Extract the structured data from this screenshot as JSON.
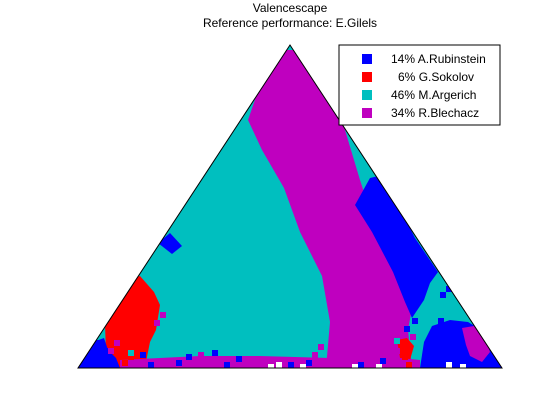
{
  "chart_data": {
    "type": "heatmap",
    "title": "Valencescape",
    "subtitle": "Reference performance: E.Gilels",
    "legend_position": "top-right",
    "grid": false,
    "series": [
      {
        "name": "A.Rubinstein",
        "share_label": "14%",
        "color": "#0000ff"
      },
      {
        "name": "G.Sokolov",
        "share_label": "6%",
        "color": "#ff0000"
      },
      {
        "name": "M.Argerich",
        "share_label": "46%",
        "color": "#00bfbf"
      },
      {
        "name": "R.Blechacz",
        "share_label": "34%",
        "color": "#bf00bf"
      }
    ]
  }
}
